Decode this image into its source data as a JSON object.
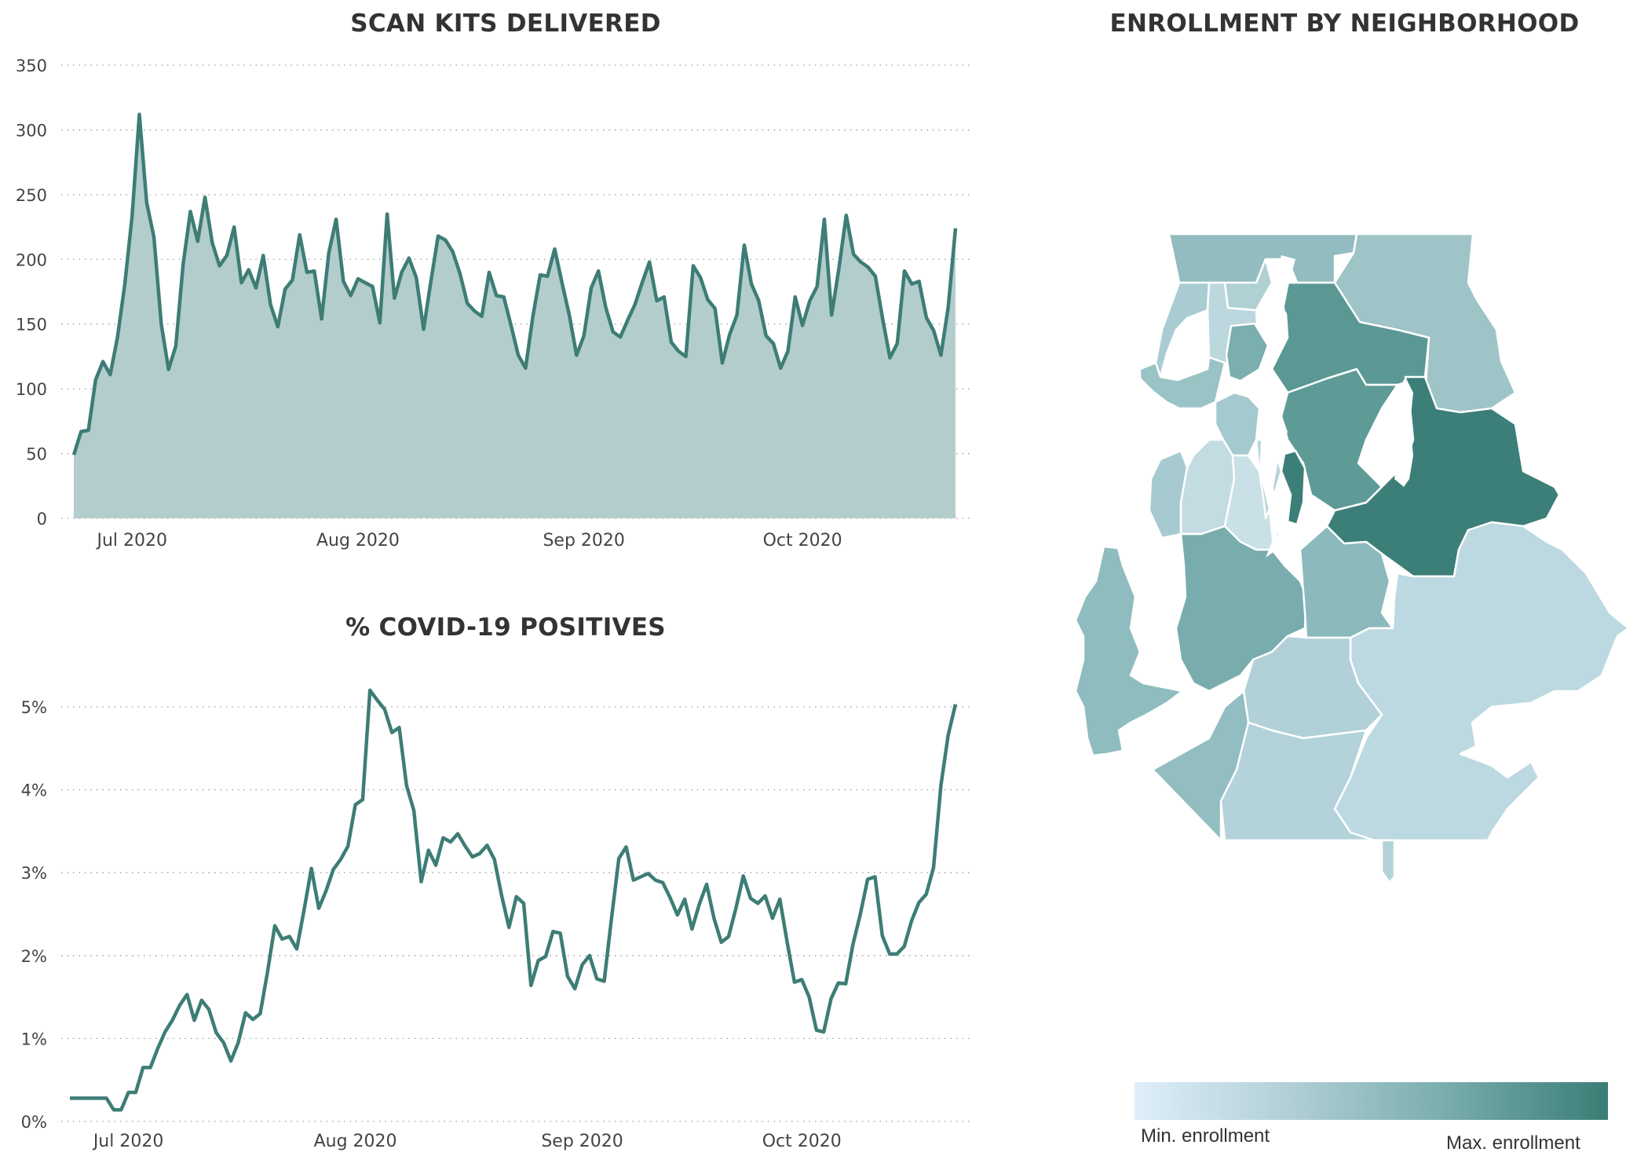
{
  "charts": {
    "scan_kits": {
      "title": "SCAN KITS DELIVERED"
    },
    "positives": {
      "title": "% COVID-19 POSITIVES"
    },
    "map": {
      "title": "ENROLLMENT BY NEIGHBORHOOD"
    }
  },
  "legend": {
    "min_label": "Min. enrollment",
    "max_label": "Max. enrollment",
    "color_min": "#deeefb",
    "color_max": "#3a7d75"
  },
  "chart_data": [
    {
      "type": "area",
      "title": "SCAN KITS DELIVERED",
      "x_start": "2020-06-23",
      "x_ticks": [
        {
          "label": "Jul 2020",
          "date": "2020-07-01"
        },
        {
          "label": "Aug 2020",
          "date": "2020-08-01"
        },
        {
          "label": "Sep 2020",
          "date": "2020-09-01"
        },
        {
          "label": "Oct 2020",
          "date": "2020-10-01"
        }
      ],
      "y_ticks": [
        0,
        50,
        100,
        150,
        200,
        250,
        300,
        350
      ],
      "ylim": [
        0,
        350
      ],
      "grid": true,
      "line_color": "#3d7d76",
      "fill_color": "#b3cdcc",
      "values": [
        49,
        67,
        68,
        107,
        121,
        111,
        140,
        181,
        233,
        312,
        244,
        217,
        150,
        115,
        133,
        196,
        237,
        214,
        248,
        213,
        195,
        203,
        225,
        182,
        192,
        178,
        203,
        165,
        148,
        177,
        184,
        219,
        190,
        191,
        154,
        205,
        231,
        183,
        172,
        185,
        182,
        179,
        151,
        235,
        170,
        190,
        201,
        186,
        146,
        183,
        218,
        215,
        206,
        189,
        166,
        160,
        156,
        190,
        172,
        171,
        149,
        126,
        116,
        156,
        188,
        187,
        208,
        182,
        157,
        126,
        141,
        178,
        191,
        163,
        144,
        140,
        153,
        165,
        182,
        198,
        168,
        171,
        136,
        129,
        125,
        195,
        186,
        169,
        162,
        120,
        142,
        157,
        211,
        181,
        168,
        141,
        135,
        116,
        129,
        171,
        149,
        168,
        179,
        231,
        157,
        193,
        234,
        204,
        198,
        194,
        187,
        154,
        124,
        135,
        191,
        181,
        183,
        155,
        145,
        126,
        163,
        224
      ]
    },
    {
      "type": "line",
      "title": "% COVID-19 POSITIVES",
      "x_start": "2020-06-23",
      "x_ticks": [
        {
          "label": "Jul 2020",
          "date": "2020-07-01"
        },
        {
          "label": "Aug 2020",
          "date": "2020-08-01"
        },
        {
          "label": "Sep 2020",
          "date": "2020-09-01"
        },
        {
          "label": "Oct 2020",
          "date": "2020-10-01"
        }
      ],
      "y_ticks": [
        "0%",
        "1%",
        "2%",
        "3%",
        "4%",
        "5%"
      ],
      "ylim": [
        0,
        5
      ],
      "grid": true,
      "line_color": "#3d7d76",
      "values": [
        0.28,
        0.28,
        0.28,
        0.28,
        0.28,
        0.28,
        0.14,
        0.14,
        0.35,
        0.35,
        0.65,
        0.65,
        0.88,
        1.08,
        1.22,
        1.4,
        1.53,
        1.22,
        1.46,
        1.35,
        1.07,
        0.95,
        0.73,
        0.95,
        1.31,
        1.23,
        1.3,
        1.8,
        2.36,
        2.2,
        2.23,
        2.08,
        2.55,
        3.05,
        2.57,
        2.78,
        3.04,
        3.16,
        3.32,
        3.82,
        3.88,
        5.2,
        5.08,
        4.97,
        4.69,
        4.75,
        4.05,
        3.75,
        2.89,
        3.27,
        3.09,
        3.42,
        3.37,
        3.47,
        3.32,
        3.19,
        3.23,
        3.33,
        3.16,
        2.72,
        2.34,
        2.71,
        2.63,
        1.64,
        1.94,
        1.99,
        2.29,
        2.27,
        1.75,
        1.6,
        1.89,
        2.0,
        1.72,
        1.69,
        2.45,
        3.17,
        3.31,
        2.91,
        2.95,
        2.99,
        2.91,
        2.88,
        2.7,
        2.49,
        2.68,
        2.32,
        2.62,
        2.86,
        2.45,
        2.16,
        2.23,
        2.57,
        2.96,
        2.69,
        2.63,
        2.72,
        2.45,
        2.68,
        2.16,
        1.68,
        1.71,
        1.5,
        1.1,
        1.08,
        1.48,
        1.67,
        1.66,
        2.14,
        2.5,
        2.92,
        2.95,
        2.24,
        2.02,
        2.02,
        2.11,
        2.42,
        2.64,
        2.74,
        3.06,
        4.05,
        4.66,
        5.03
      ]
    }
  ]
}
